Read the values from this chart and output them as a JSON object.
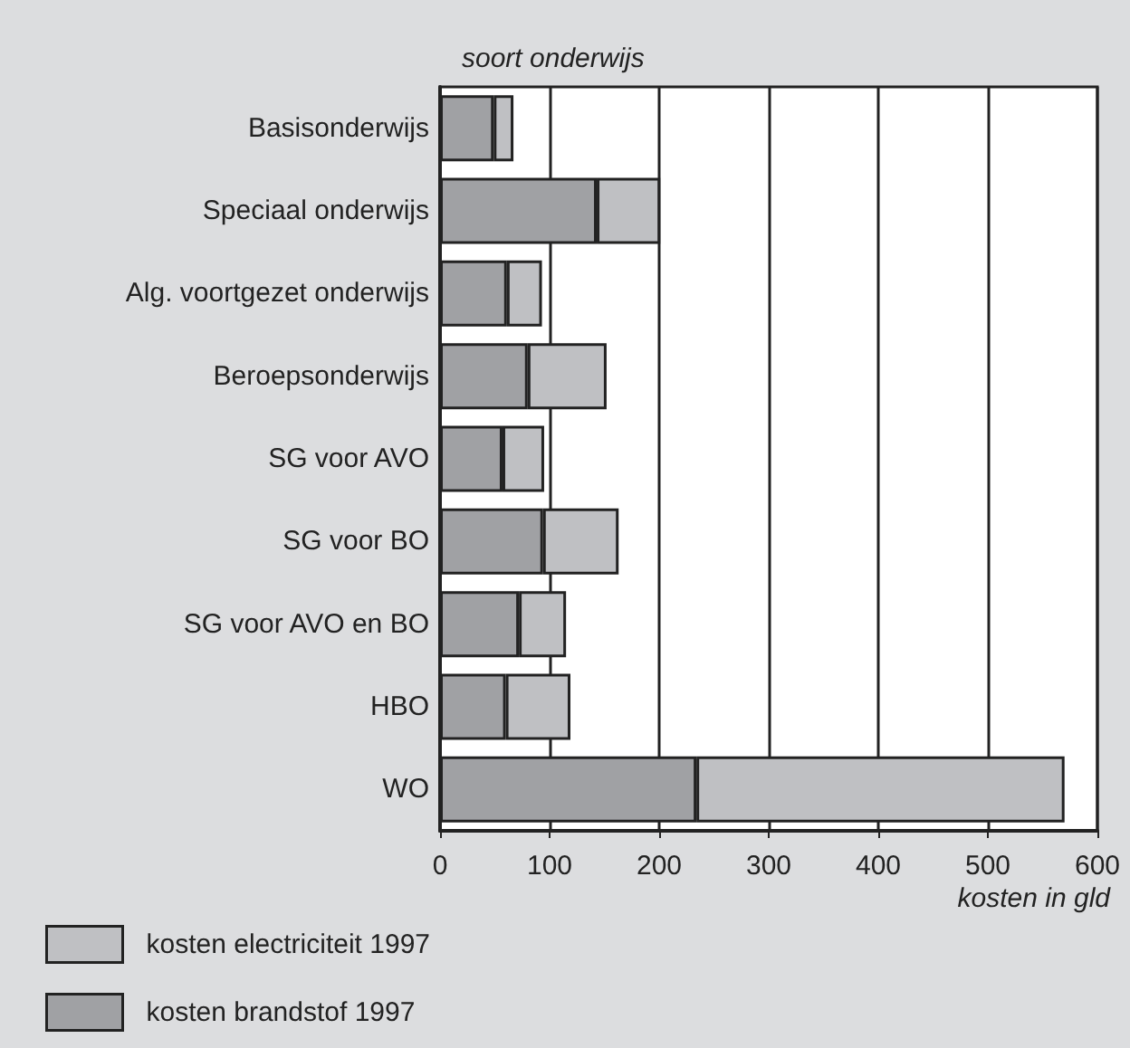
{
  "chart_data": {
    "type": "bar",
    "orientation": "horizontal",
    "stacked": true,
    "categories": [
      "Basisonderwijs",
      "Speciaal onderwijs",
      "Alg. voortgezet onderwijs",
      "Beroepsonderwijs",
      "SG voor AVO",
      "SG voor BO",
      "SG voor AVO en BO",
      "HBO",
      "WO"
    ],
    "series": [
      {
        "name": "kosten brandstof 1997",
        "color": "#a0a1a4",
        "values": [
          49,
          143,
          61,
          80,
          57,
          94,
          72,
          60,
          234
        ]
      },
      {
        "name": "kosten electriciteit 1997",
        "color": "#bfc0c3",
        "values": [
          18,
          58,
          32,
          72,
          38,
          69,
          43,
          59,
          336
        ]
      }
    ],
    "xlim": [
      0,
      600
    ],
    "xticks": [
      0,
      100,
      200,
      300,
      400,
      500,
      600
    ],
    "xlabel": "kosten in gld",
    "ylabel": "soort onderwijs",
    "grid": "x",
    "legend": "bottom left"
  }
}
